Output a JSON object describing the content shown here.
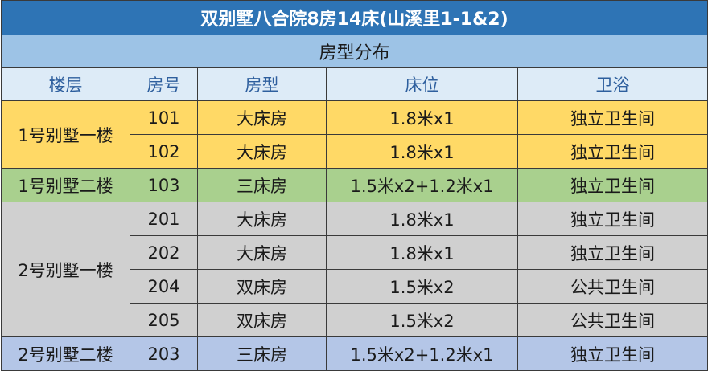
{
  "title": "双别墅八合院8房14床(山溪里1-1&2)",
  "subtitle": "房型分布",
  "headers": [
    "楼层",
    "房号",
    "房型",
    "床位",
    "卫浴"
  ],
  "groups": [
    {
      "floor": "1号别墅一楼",
      "rows": [
        {
          "room": "101",
          "type": "大床房",
          "beds": "1.8米x1",
          "bath": "独立卫生间"
        },
        {
          "room": "102",
          "type": "大床房",
          "beds": "1.8米x1",
          "bath": "独立卫生间"
        }
      ]
    },
    {
      "floor": "1号别墅二楼",
      "rows": [
        {
          "room": "103",
          "type": "三床房",
          "beds": "1.5米x2+1.2米x1",
          "bath": "独立卫生间"
        }
      ]
    },
    {
      "floor": "2号别墅一楼",
      "rows": [
        {
          "room": "201",
          "type": "大床房",
          "beds": "1.8米x1",
          "bath": "独立卫生间"
        },
        {
          "room": "202",
          "type": "大床房",
          "beds": "1.8米x1",
          "bath": "独立卫生间"
        },
        {
          "room": "204",
          "type": "双床房",
          "beds": "1.5米x2",
          "bath": "公共卫生间"
        },
        {
          "room": "205",
          "type": "双床房",
          "beds": "1.5米x2",
          "bath": "公共卫生间"
        }
      ]
    },
    {
      "floor": "2号别墅二楼",
      "rows": [
        {
          "room": "203",
          "type": "三床房",
          "beds": "1.5米x2+1.2米x1",
          "bath": "独立卫生间"
        }
      ]
    }
  ],
  "colors": {
    "title_bg": "#2e74b5",
    "subtitle_bg": "#9dc3e6",
    "header_bg": "#ddebf7",
    "group_1f1": "#ffd966",
    "group_1f2": "#a9d08e",
    "group_2f1": "#d0d0d0",
    "group_2f2": "#b4c6e7"
  }
}
